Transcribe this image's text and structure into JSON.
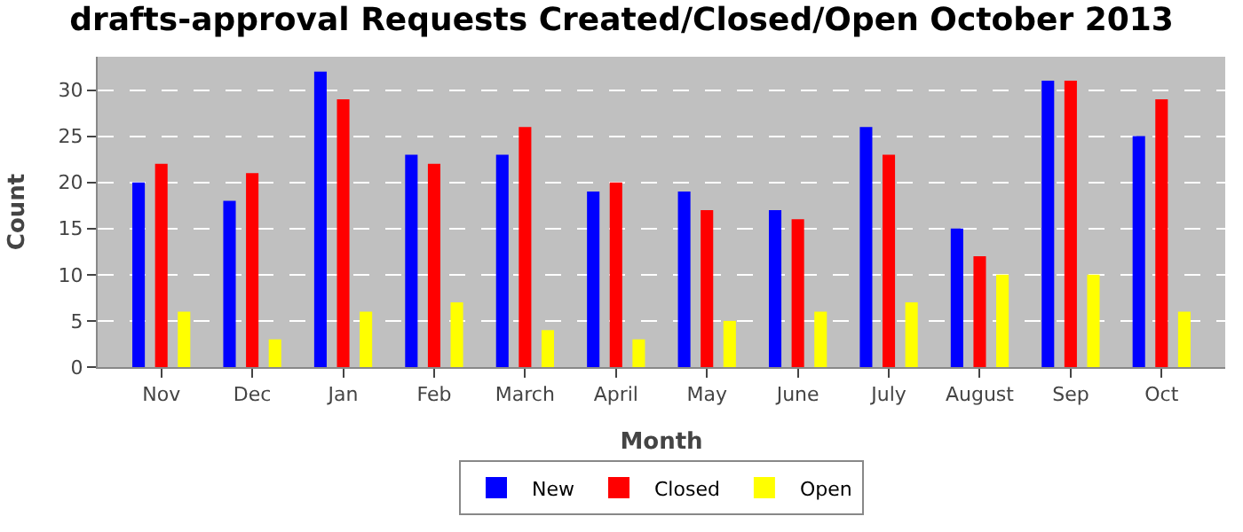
{
  "chart_data": {
    "type": "bar",
    "title": "drafts-approval Requests Created/Closed/Open October 2013",
    "xlabel": "Month",
    "ylabel": "Count",
    "categories": [
      "Nov",
      "Dec",
      "Jan",
      "Feb",
      "March",
      "April",
      "May",
      "June",
      "July",
      "August",
      "Sep",
      "Oct"
    ],
    "series": [
      {
        "name": "New",
        "color": "#0000ff",
        "values": [
          20,
          18,
          32,
          23,
          23,
          19,
          19,
          17,
          26,
          15,
          31,
          25
        ]
      },
      {
        "name": "Closed",
        "color": "#ff0000",
        "values": [
          22,
          21,
          29,
          22,
          26,
          20,
          17,
          16,
          23,
          12,
          31,
          29
        ]
      },
      {
        "name": "Open",
        "color": "#ffff00",
        "values": [
          6,
          3,
          6,
          7,
          4,
          3,
          5,
          6,
          7,
          10,
          10,
          6
        ]
      }
    ],
    "ylim": [
      0,
      33.6
    ],
    "yticks": [
      0,
      5,
      10,
      15,
      20,
      25,
      30
    ],
    "grid": "y",
    "legend": "bottom"
  }
}
